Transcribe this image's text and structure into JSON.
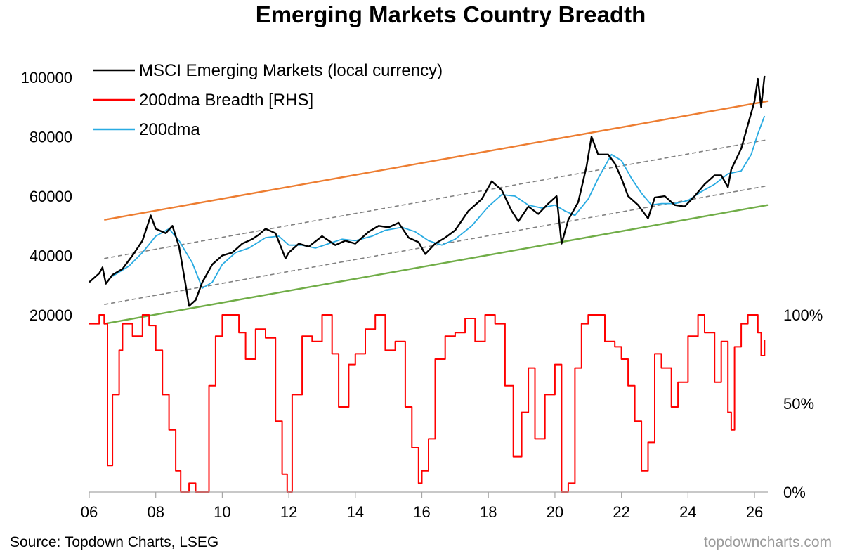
{
  "chart_data": {
    "type": "line",
    "title": "Emerging Markets Country Breadth",
    "source": "Source: Topdown Charts, LSEG",
    "watermark": "topdowncharts.com",
    "x_axis": {
      "min": 2006,
      "max": 2026.4,
      "tick_values": [
        2006,
        2008,
        2010,
        2012,
        2014,
        2016,
        2018,
        2020,
        2022,
        2024,
        2026
      ],
      "tick_labels": [
        "06",
        "08",
        "10",
        "12",
        "14",
        "16",
        "18",
        "20",
        "22",
        "24",
        "26"
      ]
    },
    "y_left": {
      "min": 20000,
      "max": 100000,
      "ticks": [
        "20000",
        "40000",
        "60000",
        "80000",
        "100000"
      ],
      "tick_values": [
        20000,
        40000,
        60000,
        80000,
        100000
      ]
    },
    "y_right": {
      "min": 0,
      "max": 100,
      "ticks": [
        "0%",
        "50%",
        "100%"
      ],
      "tick_values": [
        0,
        50,
        100
      ]
    },
    "legend": {
      "placement": "top-left",
      "entries": [
        {
          "name": "MSCI Emerging Markets (local currency)",
          "color": "#000000"
        },
        {
          "name": "200dma Breadth [RHS]",
          "color": "#ff0000"
        },
        {
          "name": "200dma",
          "color": "#29abe2"
        }
      ]
    },
    "series": [
      {
        "name": "MSCI Emerging Markets (local currency)",
        "axis": "left",
        "color": "#000000",
        "points": [
          [
            2006.0,
            31000
          ],
          [
            2006.3,
            34000
          ],
          [
            2006.4,
            36000
          ],
          [
            2006.5,
            30500
          ],
          [
            2006.7,
            33500
          ],
          [
            2007.0,
            35500
          ],
          [
            2007.3,
            40000
          ],
          [
            2007.6,
            45000
          ],
          [
            2007.85,
            53500
          ],
          [
            2008.0,
            49000
          ],
          [
            2008.3,
            47500
          ],
          [
            2008.5,
            50000
          ],
          [
            2008.7,
            43000
          ],
          [
            2008.9,
            30000
          ],
          [
            2009.0,
            23000
          ],
          [
            2009.2,
            25000
          ],
          [
            2009.4,
            31000
          ],
          [
            2009.7,
            37000
          ],
          [
            2010.0,
            40000
          ],
          [
            2010.3,
            41000
          ],
          [
            2010.6,
            44000
          ],
          [
            2010.9,
            45500
          ],
          [
            2011.1,
            47000
          ],
          [
            2011.3,
            49000
          ],
          [
            2011.6,
            47500
          ],
          [
            2011.9,
            39000
          ],
          [
            2012.0,
            41000
          ],
          [
            2012.3,
            44000
          ],
          [
            2012.6,
            43000
          ],
          [
            2013.0,
            46500
          ],
          [
            2013.4,
            43500
          ],
          [
            2013.7,
            45000
          ],
          [
            2014.0,
            44000
          ],
          [
            2014.4,
            48000
          ],
          [
            2014.7,
            50000
          ],
          [
            2015.0,
            49500
          ],
          [
            2015.3,
            51000
          ],
          [
            2015.6,
            46000
          ],
          [
            2015.9,
            44500
          ],
          [
            2016.1,
            40500
          ],
          [
            2016.4,
            44000
          ],
          [
            2016.7,
            46000
          ],
          [
            2017.0,
            48500
          ],
          [
            2017.4,
            55000
          ],
          [
            2017.8,
            59000
          ],
          [
            2018.1,
            65000
          ],
          [
            2018.4,
            62000
          ],
          [
            2018.7,
            55000
          ],
          [
            2018.9,
            51500
          ],
          [
            2019.2,
            56500
          ],
          [
            2019.5,
            54000
          ],
          [
            2019.8,
            57500
          ],
          [
            2020.05,
            60000
          ],
          [
            2020.2,
            44000
          ],
          [
            2020.4,
            52000
          ],
          [
            2020.7,
            58000
          ],
          [
            2020.95,
            70000
          ],
          [
            2021.1,
            80000
          ],
          [
            2021.3,
            74000
          ],
          [
            2021.6,
            74000
          ],
          [
            2021.8,
            71000
          ],
          [
            2022.0,
            66000
          ],
          [
            2022.2,
            60000
          ],
          [
            2022.5,
            57000
          ],
          [
            2022.8,
            52500
          ],
          [
            2023.0,
            59500
          ],
          [
            2023.3,
            60000
          ],
          [
            2023.6,
            57000
          ],
          [
            2023.9,
            56500
          ],
          [
            2024.2,
            60000
          ],
          [
            2024.5,
            64000
          ],
          [
            2024.8,
            67000
          ],
          [
            2025.0,
            67000
          ],
          [
            2025.2,
            63000
          ],
          [
            2025.3,
            69000
          ],
          [
            2025.6,
            76000
          ],
          [
            2025.8,
            84000
          ],
          [
            2026.0,
            92000
          ],
          [
            2026.1,
            99500
          ],
          [
            2026.2,
            90000
          ],
          [
            2026.3,
            100500
          ]
        ]
      },
      {
        "name": "200dma",
        "axis": "left",
        "color": "#29abe2",
        "points": [
          [
            2006.7,
            33000
          ],
          [
            2007.2,
            36500
          ],
          [
            2007.6,
            41000
          ],
          [
            2008.0,
            46500
          ],
          [
            2008.4,
            49000
          ],
          [
            2008.7,
            45000
          ],
          [
            2009.1,
            37500
          ],
          [
            2009.4,
            29000
          ],
          [
            2009.7,
            31000
          ],
          [
            2010.0,
            37000
          ],
          [
            2010.4,
            41000
          ],
          [
            2010.8,
            42500
          ],
          [
            2011.3,
            46000
          ],
          [
            2011.7,
            46500
          ],
          [
            2012.0,
            43500
          ],
          [
            2012.4,
            43500
          ],
          [
            2012.8,
            42500
          ],
          [
            2013.2,
            44000
          ],
          [
            2013.6,
            45500
          ],
          [
            2014.0,
            45000
          ],
          [
            2014.5,
            46500
          ],
          [
            2014.9,
            48500
          ],
          [
            2015.4,
            49500
          ],
          [
            2015.8,
            48000
          ],
          [
            2016.2,
            45000
          ],
          [
            2016.6,
            43500
          ],
          [
            2017.0,
            45500
          ],
          [
            2017.5,
            50000
          ],
          [
            2018.0,
            56500
          ],
          [
            2018.4,
            60500
          ],
          [
            2018.8,
            60000
          ],
          [
            2019.2,
            57000
          ],
          [
            2019.6,
            56000
          ],
          [
            2020.0,
            57000
          ],
          [
            2020.3,
            55000
          ],
          [
            2020.6,
            53500
          ],
          [
            2021.0,
            59000
          ],
          [
            2021.3,
            66000
          ],
          [
            2021.7,
            74000
          ],
          [
            2022.0,
            72000
          ],
          [
            2022.3,
            66000
          ],
          [
            2022.6,
            61000
          ],
          [
            2022.9,
            57000
          ],
          [
            2023.2,
            57500
          ],
          [
            2023.6,
            57500
          ],
          [
            2024.0,
            58500
          ],
          [
            2024.4,
            61500
          ],
          [
            2024.8,
            64000
          ],
          [
            2025.2,
            67500
          ],
          [
            2025.6,
            68500
          ],
          [
            2025.9,
            74000
          ],
          [
            2026.1,
            81000
          ],
          [
            2026.3,
            87000
          ]
        ]
      },
      {
        "name": "200dma Breadth [RHS]",
        "axis": "right",
        "color": "#ff0000",
        "points": [
          [
            2006.0,
            95
          ],
          [
            2006.3,
            100
          ],
          [
            2006.45,
            95
          ],
          [
            2006.55,
            15
          ],
          [
            2006.7,
            55
          ],
          [
            2006.9,
            80
          ],
          [
            2007.0,
            95
          ],
          [
            2007.3,
            88
          ],
          [
            2007.6,
            100
          ],
          [
            2007.8,
            94
          ],
          [
            2008.0,
            80
          ],
          [
            2008.2,
            55
          ],
          [
            2008.4,
            35
          ],
          [
            2008.6,
            12
          ],
          [
            2008.75,
            0
          ],
          [
            2009.0,
            5
          ],
          [
            2009.2,
            0
          ],
          [
            2009.4,
            0
          ],
          [
            2009.6,
            60
          ],
          [
            2009.8,
            88
          ],
          [
            2010.0,
            100
          ],
          [
            2010.3,
            100
          ],
          [
            2010.5,
            90
          ],
          [
            2010.7,
            75
          ],
          [
            2011.0,
            92
          ],
          [
            2011.3,
            87
          ],
          [
            2011.6,
            40
          ],
          [
            2011.8,
            10
          ],
          [
            2011.95,
            0
          ],
          [
            2012.1,
            55
          ],
          [
            2012.4,
            88
          ],
          [
            2012.7,
            85
          ],
          [
            2013.0,
            100
          ],
          [
            2013.3,
            78
          ],
          [
            2013.5,
            48
          ],
          [
            2013.8,
            72
          ],
          [
            2014.0,
            78
          ],
          [
            2014.3,
            92
          ],
          [
            2014.6,
            100
          ],
          [
            2014.9,
            80
          ],
          [
            2015.2,
            85
          ],
          [
            2015.5,
            48
          ],
          [
            2015.7,
            25
          ],
          [
            2015.9,
            5
          ],
          [
            2016.0,
            12
          ],
          [
            2016.2,
            30
          ],
          [
            2016.4,
            75
          ],
          [
            2016.7,
            88
          ],
          [
            2017.0,
            90
          ],
          [
            2017.3,
            98
          ],
          [
            2017.6,
            85
          ],
          [
            2017.9,
            100
          ],
          [
            2018.2,
            95
          ],
          [
            2018.5,
            60
          ],
          [
            2018.75,
            20
          ],
          [
            2019.0,
            45
          ],
          [
            2019.2,
            70
          ],
          [
            2019.4,
            30
          ],
          [
            2019.7,
            55
          ],
          [
            2020.0,
            72
          ],
          [
            2020.2,
            0
          ],
          [
            2020.4,
            5
          ],
          [
            2020.6,
            70
          ],
          [
            2020.8,
            95
          ],
          [
            2021.0,
            100
          ],
          [
            2021.2,
            100
          ],
          [
            2021.5,
            85
          ],
          [
            2021.8,
            82
          ],
          [
            2022.0,
            75
          ],
          [
            2022.2,
            60
          ],
          [
            2022.4,
            40
          ],
          [
            2022.6,
            12
          ],
          [
            2022.8,
            28
          ],
          [
            2023.0,
            78
          ],
          [
            2023.2,
            70
          ],
          [
            2023.5,
            48
          ],
          [
            2023.7,
            62
          ],
          [
            2024.0,
            88
          ],
          [
            2024.3,
            100
          ],
          [
            2024.5,
            90
          ],
          [
            2024.8,
            62
          ],
          [
            2025.0,
            85
          ],
          [
            2025.2,
            45
          ],
          [
            2025.3,
            35
          ],
          [
            2025.4,
            82
          ],
          [
            2025.6,
            95
          ],
          [
            2025.8,
            100
          ],
          [
            2026.0,
            100
          ],
          [
            2026.1,
            90
          ],
          [
            2026.2,
            77
          ],
          [
            2026.3,
            86
          ]
        ]
      }
    ],
    "trend_lines": [
      {
        "role": "upper",
        "color": "#ed7d31",
        "style": "solid",
        "points": [
          [
            2006.45,
            52000
          ],
          [
            2026.4,
            92000
          ]
        ]
      },
      {
        "role": "upper-mid",
        "color": "#808080",
        "style": "dashed",
        "points": [
          [
            2006.45,
            39000
          ],
          [
            2026.4,
            79000
          ]
        ]
      },
      {
        "role": "lower-mid",
        "color": "#808080",
        "style": "dashed",
        "points": [
          [
            2006.45,
            23500
          ],
          [
            2026.4,
            63500
          ]
        ]
      },
      {
        "role": "lower",
        "color": "#70ad47",
        "style": "solid",
        "points": [
          [
            2006.45,
            17000
          ],
          [
            2026.4,
            57000
          ]
        ]
      }
    ],
    "grid": false
  }
}
